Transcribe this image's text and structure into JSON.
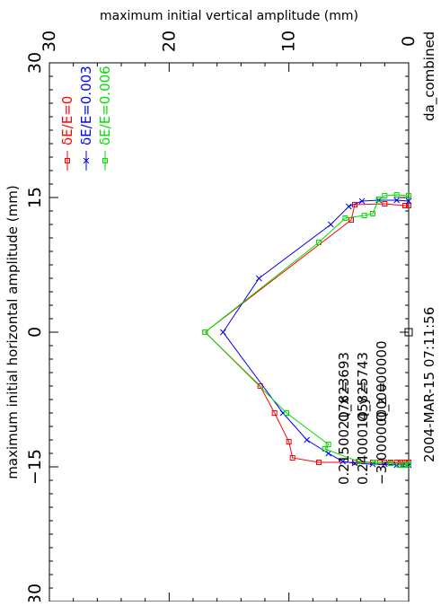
{
  "chart_data": {
    "type": "line",
    "title": "da_combined",
    "timestamp": "2004-MAR-15 07:11:56",
    "xlabel": "maximum initial horizontal amplitude (mm)",
    "ylabel": "maximum initial vertical amplitude (mm)",
    "xlim": [
      -30,
      30
    ],
    "ylim": [
      0,
      30
    ],
    "x_ticks": [
      "−30",
      "−15",
      "0",
      "15",
      "30"
    ],
    "y_ticks": [
      "0",
      "10",
      "20",
      "30"
    ],
    "legend_position": "upper-left",
    "tunes": [
      {
        "label": "Q_x  =",
        "value": "0.21500217823693"
      },
      {
        "label": "Q_y  =",
        "value": "0.24000145825743"
      },
      {
        "label": "Q_z  =",
        "value": "−3.00000000000000"
      }
    ],
    "series": [
      {
        "name": "δE/E=0",
        "color": "#ff0000",
        "marker": "square",
        "points": [
          [
            -14.5,
            0.0
          ],
          [
            -14.5,
            0.3
          ],
          [
            -14.5,
            0.5
          ],
          [
            -14.5,
            0.7
          ],
          [
            -14.5,
            1.0
          ],
          [
            -14.5,
            1.5
          ],
          [
            -14.5,
            2.0
          ],
          [
            -14.5,
            2.4
          ],
          [
            -14.5,
            3.0
          ],
          [
            -14.5,
            4.5
          ],
          [
            -14.5,
            7.5
          ],
          [
            -14.0,
            9.7
          ],
          [
            -12.2,
            10.0
          ],
          [
            -9.0,
            11.2
          ],
          [
            -6.0,
            12.4
          ],
          [
            0.0,
            17.0
          ],
          [
            12.5,
            4.8
          ],
          [
            14.2,
            4.5
          ],
          [
            14.3,
            2.0
          ],
          [
            14.1,
            0.3
          ],
          [
            14.1,
            0.0
          ]
        ]
      },
      {
        "name": "δE/E=0.003",
        "color": "#0000ff",
        "marker": "x",
        "points": [
          [
            -14.8,
            0.0
          ],
          [
            -14.8,
            0.5
          ],
          [
            -14.8,
            1.0
          ],
          [
            -14.7,
            2.0
          ],
          [
            -14.7,
            3.0
          ],
          [
            -14.6,
            4.5
          ],
          [
            -14.4,
            5.5
          ],
          [
            -13.5,
            6.7
          ],
          [
            -12.0,
            8.5
          ],
          [
            -9.0,
            10.5
          ],
          [
            0.0,
            15.5
          ],
          [
            6.0,
            12.5
          ],
          [
            12.0,
            6.5
          ],
          [
            14.0,
            5.0
          ],
          [
            14.6,
            3.9
          ],
          [
            14.7,
            2.5
          ],
          [
            14.7,
            1.0
          ],
          [
            14.6,
            0.0
          ]
        ]
      },
      {
        "name": "δE/E=0.006",
        "color": "#00dd00",
        "marker": "square",
        "points": [
          [
            -14.7,
            0.0
          ],
          [
            -14.8,
            0.3
          ],
          [
            -14.8,
            0.8
          ],
          [
            -14.6,
            1.5
          ],
          [
            -14.5,
            2.8
          ],
          [
            -14.4,
            4.2
          ],
          [
            -13.0,
            7.0
          ],
          [
            -12.5,
            6.7
          ],
          [
            -9.0,
            10.2
          ],
          [
            0.0,
            17.0
          ],
          [
            10.0,
            7.5
          ],
          [
            12.7,
            5.3
          ],
          [
            13.0,
            3.7
          ],
          [
            13.2,
            3.0
          ],
          [
            14.8,
            2.5
          ],
          [
            15.2,
            2.0
          ],
          [
            15.3,
            1.0
          ],
          [
            15.2,
            0.0
          ]
        ]
      }
    ]
  }
}
